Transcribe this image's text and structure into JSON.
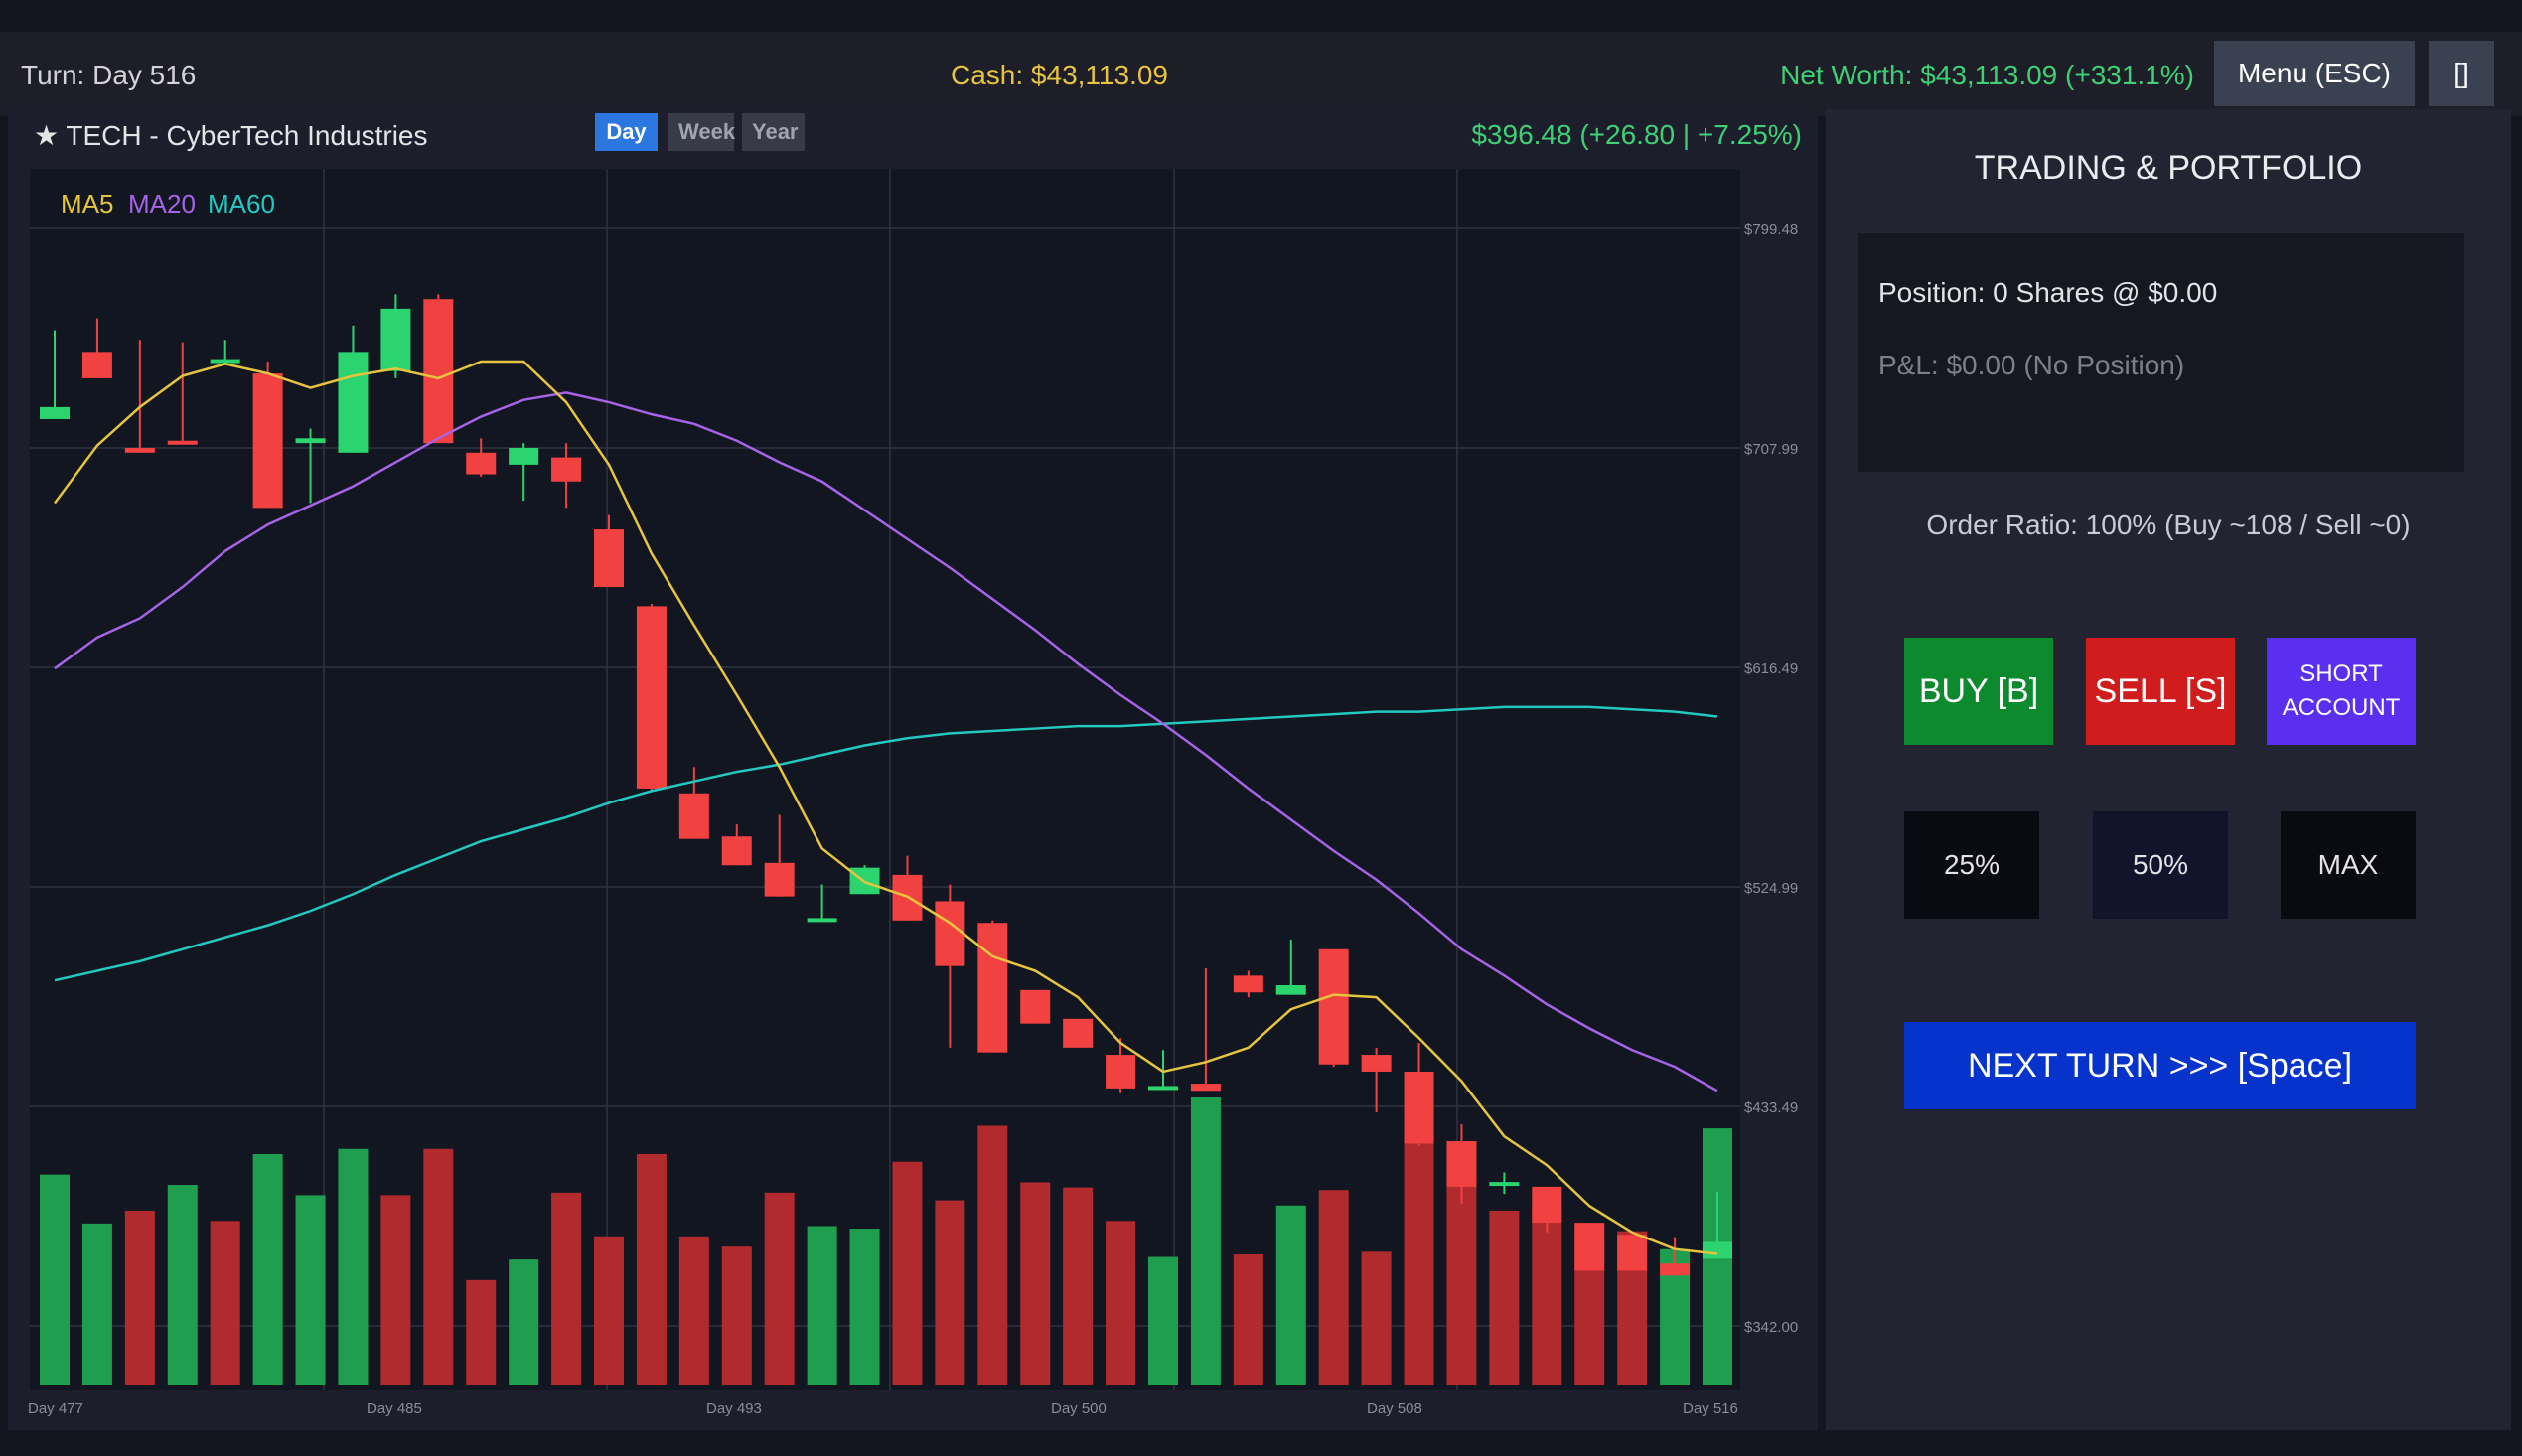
{
  "topbar": {
    "turn": "Turn: Day 516",
    "cash": "Cash: $43,113.09",
    "net_worth": "Net Worth: $43,113.09 (+331.1%)",
    "menu_label": "Menu (ESC)",
    "fullscreen_label": "[]"
  },
  "chart_header": {
    "ticker": "★ TECH - CyberTech Industries",
    "timeframes": [
      "Day",
      "Week",
      "Year"
    ],
    "active_timeframe": "Day",
    "price": "$396.48 (+26.80 | +7.25%)"
  },
  "chart_data": {
    "type": "candlestick",
    "legend": [
      "MA5",
      "MA20",
      "MA60"
    ],
    "legend_colors": [
      "#e7c440",
      "#a663e8",
      "#23c9c0"
    ],
    "up_color": "#2bd46e",
    "down_color": "#f24141",
    "y_tick_labels": [
      "$799.48",
      "$707.99",
      "$616.49",
      "$524.99",
      "$433.49",
      "$342.00"
    ],
    "y_ticks": [
      799.48,
      707.99,
      616.49,
      524.99,
      433.49,
      342.0
    ],
    "x_tick_labels": [
      "Day 477",
      "Day 485",
      "Day 493",
      "Day 500",
      "Day 508",
      "Day 516"
    ],
    "ylim": [
      342.0,
      799.48
    ],
    "days": [
      477,
      478,
      479,
      480,
      481,
      482,
      483,
      484,
      485,
      486,
      487,
      488,
      489,
      490,
      491,
      492,
      493,
      494,
      495,
      496,
      497,
      498,
      499,
      500,
      501,
      502,
      503,
      504,
      505,
      506,
      507,
      508,
      509,
      510,
      511,
      512,
      513,
      514,
      515,
      516
    ],
    "ohlc": [
      [
        720,
        757,
        751,
        725
      ],
      [
        748,
        762,
        753,
        737
      ],
      [
        708,
        753,
        751,
        706
      ],
      [
        711,
        752,
        746,
        710
      ],
      [
        744,
        753,
        746,
        745
      ],
      [
        739,
        744,
        739,
        683
      ],
      [
        710,
        716,
        685,
        712
      ],
      [
        706,
        759,
        721,
        748
      ],
      [
        740,
        772,
        737,
        766
      ],
      [
        770,
        772,
        710,
        710
      ],
      [
        706,
        712,
        696,
        697
      ],
      [
        701,
        710,
        686,
        708
      ],
      [
        704,
        710,
        683,
        694
      ],
      [
        674,
        680,
        652,
        650
      ],
      [
        642,
        643,
        565,
        566
      ],
      [
        564,
        575,
        547,
        545
      ],
      [
        546,
        551,
        534,
        534
      ],
      [
        535,
        555,
        522,
        521
      ],
      [
        512,
        526,
        519,
        512
      ],
      [
        522,
        534,
        534,
        533
      ],
      [
        530,
        538,
        511,
        511
      ],
      [
        519,
        526,
        458,
        492
      ],
      [
        510,
        511,
        477,
        456
      ],
      [
        482,
        482,
        470,
        468
      ],
      [
        470,
        470,
        460,
        458
      ],
      [
        455,
        462,
        439,
        441
      ],
      [
        441,
        457,
        457,
        442
      ],
      [
        443,
        491,
        493,
        440
      ],
      [
        488,
        490,
        479,
        481
      ],
      [
        480,
        503,
        500,
        484
      ],
      [
        499,
        499,
        450,
        451
      ],
      [
        455,
        458,
        431,
        448
      ],
      [
        448,
        460,
        417,
        418
      ],
      [
        419,
        426,
        393,
        400
      ],
      [
        402,
        406,
        397,
        402
      ],
      [
        400,
        400,
        381,
        385
      ],
      [
        385,
        385,
        368,
        365
      ],
      [
        380,
        370,
        368,
        365
      ],
      [
        368,
        379,
        376,
        363
      ],
      [
        370,
        398,
        398,
        377
      ]
    ],
    "volume_up": [
      true,
      true,
      false,
      true,
      false,
      true,
      true,
      true,
      false,
      false,
      false,
      true,
      false,
      false,
      false,
      false,
      false,
      false,
      true,
      true,
      false,
      false,
      false,
      false,
      false,
      false,
      true,
      true,
      false,
      true,
      false,
      false,
      false,
      false,
      false,
      false,
      false,
      false,
      true,
      true
    ],
    "volume": [
      82,
      63,
      68,
      78,
      64,
      90,
      74,
      92,
      74,
      92,
      41,
      49,
      75,
      58,
      90,
      58,
      54,
      75,
      62,
      61,
      87,
      72,
      101,
      79,
      77,
      64,
      50,
      112,
      51,
      70,
      76,
      52,
      97,
      80,
      68,
      69,
      58,
      60,
      53,
      100
    ],
    "ma5": [
      685,
      709,
      725,
      738,
      743,
      739,
      733,
      738,
      741,
      737,
      744,
      744,
      727,
      701,
      664,
      634,
      605,
      575,
      541,
      527,
      521,
      510,
      496,
      490,
      479,
      460,
      448,
      452,
      458,
      474,
      480,
      479,
      462,
      444,
      421,
      409,
      392,
      381,
      374,
      372
    ],
    "ma20": [
      616,
      629,
      637,
      650,
      665,
      676,
      684,
      692,
      702,
      712,
      721,
      728,
      731,
      727,
      722,
      718,
      711,
      702,
      694,
      682,
      670,
      658,
      645,
      632,
      618,
      605,
      593,
      580,
      566,
      553,
      540,
      528,
      514,
      499,
      488,
      476,
      466,
      457,
      450,
      440
    ],
    "ma60": [
      486,
      490,
      494,
      499,
      504,
      509,
      515,
      522,
      530,
      537,
      544,
      549,
      554,
      560,
      565,
      569,
      573,
      576,
      580,
      584,
      587,
      589,
      590,
      591,
      592,
      592,
      593,
      594,
      595,
      596,
      597,
      598,
      598,
      599,
      600,
      600,
      600,
      599,
      598,
      596
    ]
  },
  "portfolio": {
    "title": "TRADING & PORTFOLIO",
    "position": "Position: 0 Shares @ $0.00",
    "pnl": "P&L: $0.00 (No Position)",
    "order_ratio": "Order Ratio: 100% (Buy ~108 / Sell ~0)",
    "buy_label": "BUY [B]",
    "sell_label": "SELL [S]",
    "short_label_line1": "SHORT",
    "short_label_line2": "ACCOUNT",
    "pct_25": "25%",
    "pct_50": "50%",
    "pct_max": "MAX",
    "next_turn": "NEXT TURN >>> [Space]"
  }
}
